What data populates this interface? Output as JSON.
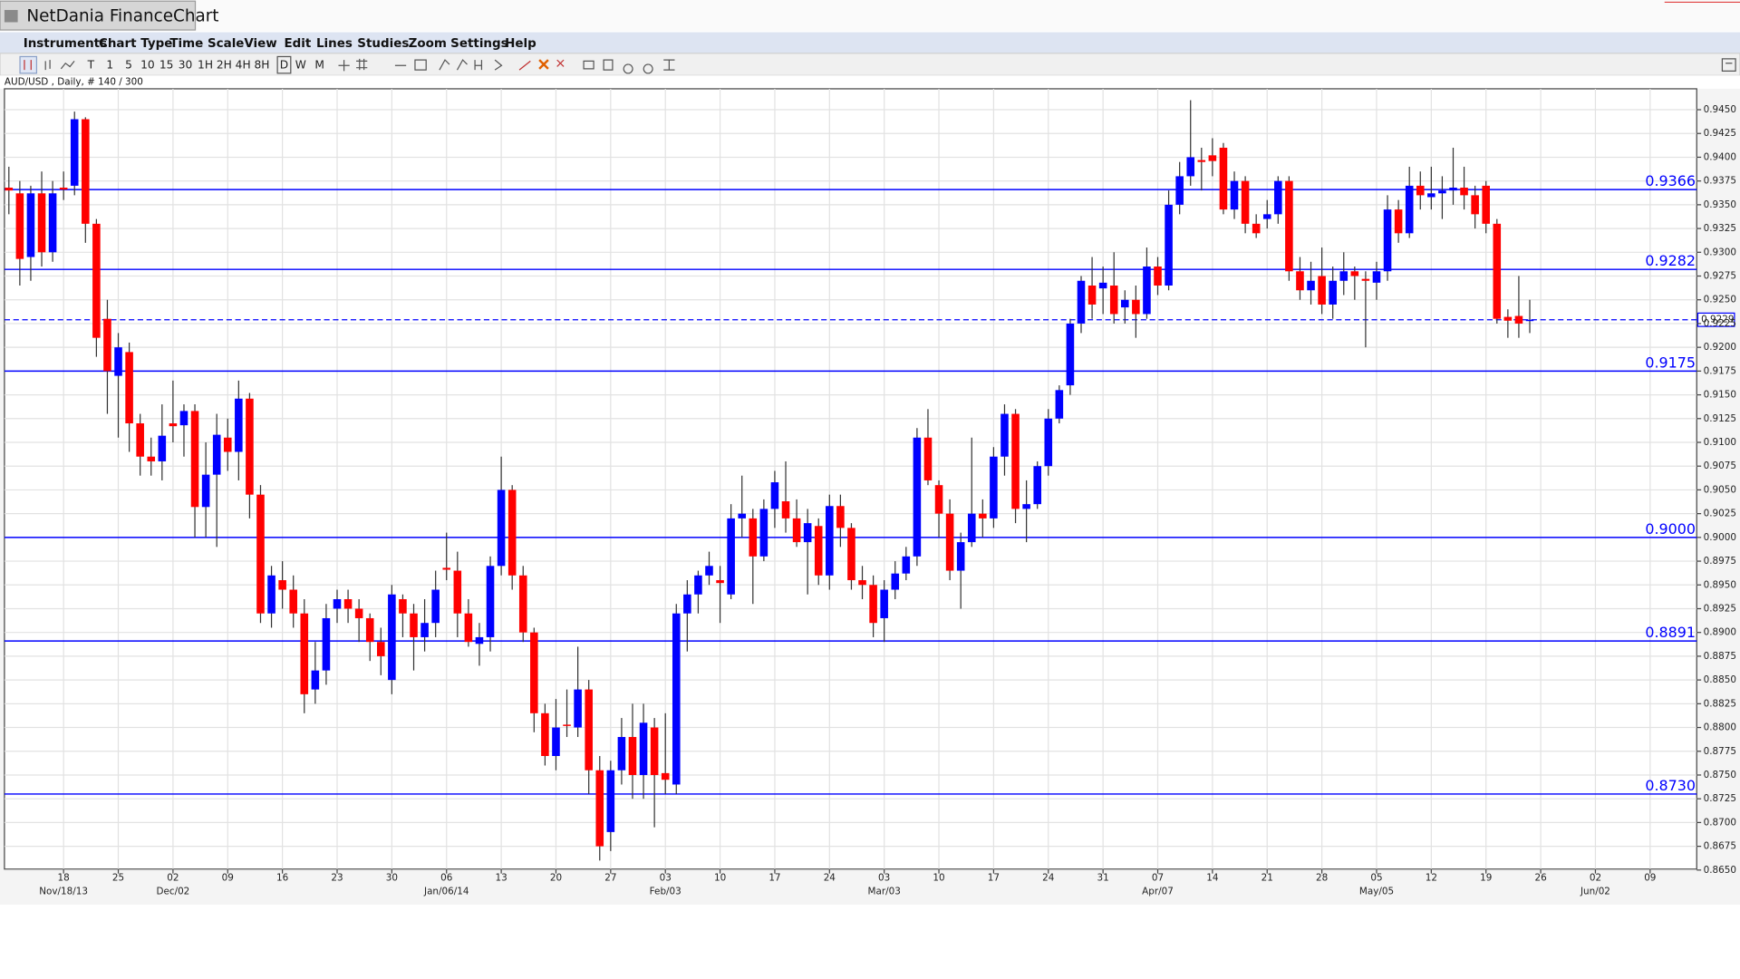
{
  "window": {
    "title": "NetDania FinanceChart"
  },
  "menu": [
    "Instruments",
    "Chart Type",
    "Time Scale",
    "View",
    "Edit",
    "Lines",
    "Studies",
    "Zoom",
    "Settings",
    "Help"
  ],
  "toolbar": [
    "T",
    "1",
    "5",
    "10",
    "15",
    "30",
    "1H",
    "2H",
    "4H",
    "8H",
    "D",
    "W",
    "M"
  ],
  "chart_data": {
    "type": "candlestick",
    "title": "AUD/USD , Daily, # 140 / 300",
    "categories": [
      null,
      null,
      null,
      null,
      null,
      "18",
      null,
      null,
      null,
      null,
      "25",
      null,
      null,
      null,
      null,
      "02",
      null,
      null,
      null,
      null,
      "09",
      null,
      null,
      null,
      null,
      "16",
      null,
      null,
      null,
      null,
      "23",
      null,
      null,
      null,
      null,
      "30",
      null,
      null,
      null,
      null,
      "06",
      null,
      null,
      null,
      null,
      "13",
      null,
      null,
      null,
      null,
      "20",
      null,
      null,
      null,
      null,
      "27",
      null,
      null,
      null,
      null,
      "03",
      null,
      null,
      null,
      null,
      "10",
      null,
      null,
      null,
      null,
      "17",
      null,
      null,
      null,
      null,
      "24",
      null,
      null,
      null,
      null,
      "03",
      null,
      null,
      null,
      null,
      "10",
      null,
      null,
      null,
      null,
      "17",
      null,
      null,
      null,
      null,
      "24",
      null,
      null,
      null,
      null,
      "31",
      null,
      null,
      null,
      null,
      "07",
      null,
      null,
      null,
      null,
      "14",
      null,
      null,
      null,
      null,
      "21",
      null,
      null,
      null,
      null,
      "28",
      null,
      null,
      null,
      null,
      "05",
      null,
      null,
      null,
      null,
      "12",
      null,
      null,
      null,
      null,
      "19",
      null,
      null,
      null,
      null,
      "26",
      null,
      null,
      null,
      null,
      "02",
      null,
      null,
      null,
      null,
      "09"
    ],
    "category_sublabels": [
      null,
      null,
      null,
      null,
      null,
      "Nov/18/13",
      null,
      null,
      null,
      null,
      null,
      null,
      null,
      null,
      null,
      "Dec/02",
      null,
      null,
      null,
      null,
      null,
      null,
      null,
      null,
      null,
      null,
      null,
      null,
      null,
      null,
      null,
      null,
      null,
      null,
      null,
      null,
      null,
      null,
      null,
      null,
      "Jan/06/14",
      null,
      null,
      null,
      null,
      null,
      null,
      null,
      null,
      null,
      null,
      null,
      null,
      null,
      null,
      null,
      null,
      null,
      null,
      null,
      "Feb/03",
      null,
      null,
      null,
      null,
      null,
      null,
      null,
      null,
      null,
      null,
      null,
      null,
      null,
      null,
      null,
      null,
      null,
      null,
      null,
      "Mar/03",
      null,
      null,
      null,
      null,
      null,
      null,
      null,
      null,
      null,
      null,
      null,
      null,
      null,
      null,
      null,
      null,
      null,
      null,
      null,
      null,
      null,
      null,
      null,
      null,
      "Apr/07",
      null,
      null,
      null,
      null,
      null,
      null,
      null,
      null,
      null,
      null,
      null,
      null,
      null,
      null,
      null,
      null,
      null,
      null,
      null,
      "May/05",
      null,
      null,
      null,
      null,
      null,
      null,
      null,
      null,
      null,
      null,
      null,
      null,
      null,
      null,
      null,
      null,
      null,
      null,
      null,
      "Jun/02",
      null,
      null,
      null,
      null,
      null
    ],
    "open": [
      0.9368,
      0.9362,
      0.9295,
      0.9362,
      0.93,
      0.9368,
      0.937,
      0.944,
      0.933,
      0.923,
      0.917,
      0.9195,
      0.912,
      0.9085,
      0.908,
      0.912,
      0.9118,
      0.9133,
      0.9032,
      0.9066,
      0.9105,
      0.909,
      0.9146,
      0.9045,
      0.892,
      0.8955,
      0.8945,
      0.892,
      0.884,
      0.886,
      0.8925,
      0.8935,
      0.8925,
      0.8915,
      0.889,
      0.885,
      0.8935,
      0.892,
      0.8895,
      0.891,
      0.8968,
      0.8965,
      0.892,
      0.8888,
      0.8895,
      0.897,
      0.905,
      0.896,
      0.89,
      0.8815,
      0.877,
      0.8803,
      0.88,
      0.884,
      0.8755,
      0.869,
      0.8755,
      0.879,
      0.875,
      0.88,
      0.8752,
      0.874,
      0.892,
      0.894,
      0.896,
      0.8955,
      0.894,
      0.902,
      0.902,
      0.898,
      0.903,
      0.9038,
      0.902,
      0.8995,
      0.9012,
      0.896,
      0.9033,
      0.901,
      0.8955,
      0.895,
      0.8915,
      0.8945,
      0.8962,
      0.898,
      0.9105,
      0.9055,
      0.9025,
      0.8965,
      0.8995,
      0.9025,
      0.902,
      0.9085,
      0.913,
      0.903,
      0.9035,
      0.9075,
      0.9125,
      0.916,
      0.9225,
      0.9265,
      0.9262,
      0.9265,
      0.9242,
      0.925,
      0.9235,
      0.9285,
      0.9265,
      0.935,
      0.938,
      0.9397,
      0.9402,
      0.941,
      0.9345,
      0.9375,
      0.933,
      0.9335,
      0.934,
      0.9375,
      0.928,
      0.926,
      0.9275,
      0.9245,
      0.927,
      0.928,
      0.9272,
      0.9268,
      0.928,
      0.9345,
      0.932,
      0.937,
      0.9358,
      0.9362,
      0.9365,
      0.9368,
      0.936,
      0.937,
      0.933,
      0.9232,
      0.9233,
      0.9228,
      null,
      null,
      null,
      null,
      null,
      null,
      null,
      null,
      null,
      null,
      null
    ],
    "high": [
      0.939,
      0.9375,
      0.937,
      0.9385,
      0.9375,
      0.9385,
      0.9448,
      0.9442,
      0.9335,
      0.925,
      0.9215,
      0.9205,
      0.913,
      0.9105,
      0.914,
      0.9165,
      0.914,
      0.914,
      0.91,
      0.913,
      0.9125,
      0.9165,
      0.9152,
      0.9055,
      0.897,
      0.8975,
      0.896,
      0.8935,
      0.889,
      0.893,
      0.8945,
      0.8945,
      0.8935,
      0.892,
      0.8905,
      0.895,
      0.894,
      0.893,
      0.8935,
      0.8965,
      0.9005,
      0.8985,
      0.8935,
      0.891,
      0.898,
      0.9085,
      0.9055,
      0.897,
      0.8905,
      0.8825,
      0.883,
      0.884,
      0.8885,
      0.885,
      0.877,
      0.8765,
      0.881,
      0.8825,
      0.8825,
      0.881,
      0.8815,
      0.893,
      0.8955,
      0.8965,
      0.8985,
      0.897,
      0.9035,
      0.9065,
      0.903,
      0.904,
      0.907,
      0.908,
      0.904,
      0.903,
      0.902,
      0.9045,
      0.9045,
      0.9015,
      0.897,
      0.896,
      0.8955,
      0.8975,
      0.899,
      0.9115,
      0.9135,
      0.906,
      0.904,
      0.9005,
      0.9105,
      0.904,
      0.9095,
      0.914,
      0.9135,
      0.906,
      0.908,
      0.9135,
      0.916,
      0.923,
      0.9275,
      0.9295,
      0.9285,
      0.93,
      0.926,
      0.9265,
      0.9305,
      0.9295,
      0.9365,
      0.9395,
      0.946,
      0.941,
      0.942,
      0.9415,
      0.9385,
      0.938,
      0.934,
      0.9355,
      0.938,
      0.938,
      0.9295,
      0.929,
      0.9305,
      0.9285,
      0.93,
      0.9285,
      0.928,
      0.929,
      0.936,
      0.9355,
      0.939,
      0.9385,
      0.939,
      0.938,
      0.941,
      0.939,
      0.937,
      0.9375,
      0.9335,
      0.924,
      0.9275,
      0.925,
      null,
      null,
      null,
      null,
      null,
      null,
      null,
      null,
      null,
      null,
      null
    ],
    "low": [
      0.934,
      0.9265,
      0.927,
      0.9285,
      0.929,
      0.9355,
      0.936,
      0.931,
      0.919,
      0.913,
      0.9105,
      0.909,
      0.9065,
      0.9065,
      0.906,
      0.91,
      0.9085,
      0.9,
      0.9,
      0.899,
      0.907,
      0.906,
      0.902,
      0.891,
      0.8905,
      0.8925,
      0.8905,
      0.8815,
      0.8825,
      0.8845,
      0.891,
      0.891,
      0.889,
      0.887,
      0.8855,
      0.8835,
      0.8895,
      0.886,
      0.888,
      0.8895,
      0.8955,
      0.8895,
      0.8885,
      0.8865,
      0.888,
      0.896,
      0.8945,
      0.889,
      0.8795,
      0.876,
      0.8755,
      0.879,
      0.879,
      0.873,
      0.866,
      0.867,
      0.874,
      0.8725,
      0.8725,
      0.8695,
      0.873,
      0.873,
      0.888,
      0.892,
      0.895,
      0.891,
      0.8935,
      0.9,
      0.893,
      0.8975,
      0.901,
      0.9005,
      0.899,
      0.894,
      0.895,
      0.8945,
      0.899,
      0.8945,
      0.8935,
      0.8895,
      0.889,
      0.8935,
      0.8955,
      0.897,
      0.9055,
      0.9,
      0.8955,
      0.8925,
      0.899,
      0.9,
      0.901,
      0.9065,
      0.9015,
      0.8995,
      0.903,
      0.9065,
      0.912,
      0.915,
      0.9215,
      0.923,
      0.9235,
      0.9225,
      0.9225,
      0.921,
      0.923,
      0.9255,
      0.926,
      0.934,
      0.937,
      0.9365,
      0.938,
      0.934,
      0.9335,
      0.932,
      0.9315,
      0.9325,
      0.933,
      0.927,
      0.925,
      0.9245,
      0.9235,
      0.923,
      0.9255,
      0.925,
      0.92,
      0.925,
      0.927,
      0.931,
      0.9315,
      0.9345,
      0.9345,
      0.9335,
      0.935,
      0.9345,
      0.9325,
      0.932,
      0.9225,
      0.921,
      0.921,
      0.9215,
      null,
      null,
      null,
      null,
      null,
      null,
      null,
      null,
      null,
      null,
      null
    ],
    "close": [
      0.9365,
      0.9293,
      0.9362,
      0.93,
      0.9362,
      0.9366,
      0.944,
      0.933,
      0.921,
      0.9175,
      0.92,
      0.912,
      0.9085,
      0.908,
      0.9107,
      0.9117,
      0.9133,
      0.9032,
      0.9066,
      0.9108,
      0.909,
      0.9146,
      0.9045,
      0.892,
      0.896,
      0.8945,
      0.892,
      0.8835,
      0.886,
      0.8915,
      0.8935,
      0.8925,
      0.8915,
      0.889,
      0.8875,
      0.894,
      0.892,
      0.8895,
      0.891,
      0.8945,
      0.8966,
      0.892,
      0.889,
      0.8895,
      0.897,
      0.905,
      0.896,
      0.89,
      0.8815,
      0.877,
      0.88,
      0.8802,
      0.884,
      0.8755,
      0.8675,
      0.8755,
      0.879,
      0.875,
      0.8805,
      0.875,
      0.8745,
      0.892,
      0.894,
      0.896,
      0.897,
      0.8952,
      0.902,
      0.9025,
      0.898,
      0.903,
      0.9058,
      0.902,
      0.8995,
      0.9015,
      0.896,
      0.9033,
      0.901,
      0.8955,
      0.895,
      0.891,
      0.8945,
      0.8962,
      0.898,
      0.9105,
      0.906,
      0.9025,
      0.8965,
      0.8995,
      0.9025,
      0.902,
      0.9085,
      0.913,
      0.903,
      0.9035,
      0.9075,
      0.9125,
      0.9155,
      0.9225,
      0.927,
      0.9245,
      0.9268,
      0.9235,
      0.925,
      0.9235,
      0.9285,
      0.9265,
      0.935,
      0.938,
      0.94,
      0.9395,
      0.9396,
      0.9345,
      0.9375,
      0.933,
      0.932,
      0.934,
      0.9375,
      0.928,
      0.926,
      0.927,
      0.9245,
      0.927,
      0.928,
      0.9275,
      0.927,
      0.928,
      0.9345,
      0.932,
      0.937,
      0.936,
      0.9362,
      0.9365,
      0.9368,
      0.936,
      0.934,
      0.933,
      0.923,
      0.9228,
      0.9225,
      0.9229,
      null,
      null,
      null,
      null,
      null,
      null,
      null,
      null,
      null,
      null,
      null
    ],
    "up_color": "#0000ff",
    "down_color": "#ff0000",
    "ylim": [
      0.8651,
      0.9472
    ],
    "yticks": [
      {
        "value": 0.865,
        "label": "0.8650"
      },
      0.8675,
      {
        "value": 0.87,
        "label": "0.8700"
      },
      0.8725,
      {
        "value": 0.875,
        "label": "0.8750"
      },
      0.8775,
      {
        "value": 0.88,
        "label": "0.8800"
      },
      0.8825,
      {
        "value": 0.885,
        "label": "0.8850"
      },
      0.8875,
      {
        "value": 0.89,
        "label": "0.8900"
      },
      0.8925,
      {
        "value": 0.895,
        "label": "0.8950"
      },
      0.8975,
      {
        "value": 0.9,
        "label": "0.9000"
      },
      0.9025,
      {
        "value": 0.905,
        "label": "0.9050"
      },
      0.9075,
      {
        "value": 0.91,
        "label": "0.9100"
      },
      0.9125,
      {
        "value": 0.915,
        "label": "0.9150"
      },
      0.9175,
      {
        "value": 0.92,
        "label": "0.9200"
      },
      0.9225,
      {
        "value": 0.925,
        "label": "0.9250"
      },
      0.9275,
      {
        "value": 0.93,
        "label": "0.9300"
      },
      0.9325,
      {
        "value": 0.935,
        "label": "0.9350"
      },
      0.9375,
      {
        "value": 0.94,
        "label": "0.9400"
      },
      0.9425,
      {
        "value": 0.945,
        "label": "0.9450"
      }
    ],
    "grid": true,
    "levels": [
      0.9366,
      0.9282,
      0.9175,
      {
        "value": 0.9,
        "label": "0.9000"
      },
      0.8891,
      {
        "value": 0.873,
        "label": "0.8730"
      }
    ],
    "level_color": "#0000ff",
    "current_price": 0.9229
  }
}
